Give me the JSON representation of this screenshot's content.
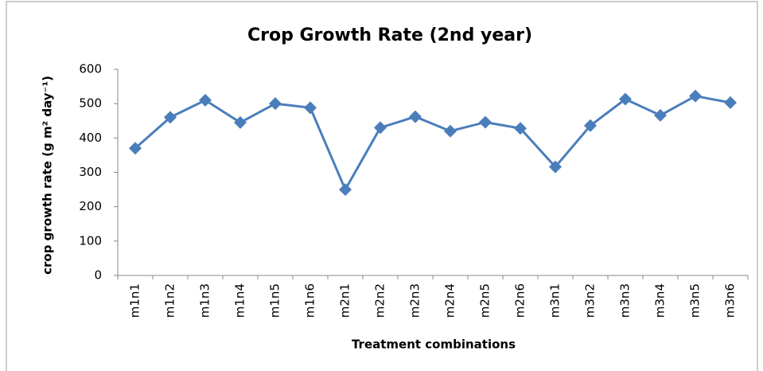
{
  "chart_data": {
    "type": "line",
    "title": "Crop Growth Rate (2nd year)",
    "x_label": "Treatment combinations",
    "y_label": "crop growth rate (g m² day⁻¹)",
    "categories": [
      "m1n1",
      "m1n2",
      "m1n3",
      "m1n4",
      "m1n5",
      "m1n6",
      "m2n1",
      "m2n2",
      "m2n3",
      "m2n4",
      "m2n5",
      "m2n6",
      "m3n1",
      "m3n2",
      "m3n3",
      "m3n4",
      "m3n5",
      "m3n6"
    ],
    "values": [
      370,
      460,
      510,
      445,
      500,
      488,
      250,
      430,
      462,
      420,
      446,
      428,
      316,
      436,
      513,
      466,
      522,
      503
    ],
    "color": "#4a7ebb",
    "ylim": [
      0,
      600
    ],
    "yticks": [
      0,
      100,
      200,
      300,
      400,
      500,
      600
    ],
    "grid": false
  }
}
